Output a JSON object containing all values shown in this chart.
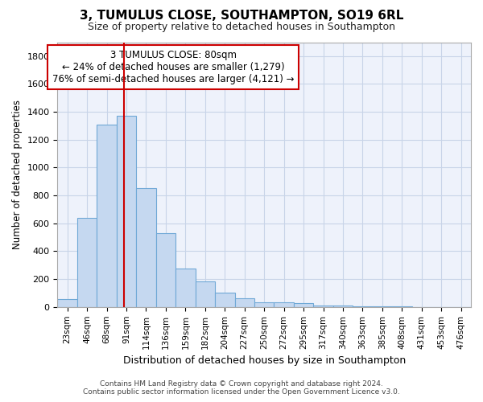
{
  "title": "3, TUMULUS CLOSE, SOUTHAMPTON, SO19 6RL",
  "subtitle": "Size of property relative to detached houses in Southampton",
  "xlabel": "Distribution of detached houses by size in Southampton",
  "ylabel": "Number of detached properties",
  "bar_values": [
    55,
    640,
    1310,
    1370,
    850,
    530,
    275,
    185,
    105,
    65,
    35,
    35,
    25,
    12,
    12,
    5,
    2,
    2,
    0,
    0,
    0
  ],
  "bar_labels": [
    "23sqm",
    "46sqm",
    "68sqm",
    "91sqm",
    "114sqm",
    "136sqm",
    "159sqm",
    "182sqm",
    "204sqm",
    "227sqm",
    "250sqm",
    "272sqm",
    "295sqm",
    "317sqm",
    "340sqm",
    "363sqm",
    "385sqm",
    "408sqm",
    "431sqm",
    "453sqm",
    "476sqm"
  ],
  "bar_color": "#c5d8f0",
  "bar_edge_color": "#6fa8d6",
  "ylim": [
    0,
    1900
  ],
  "yticks": [
    0,
    200,
    400,
    600,
    800,
    1000,
    1200,
    1400,
    1600,
    1800
  ],
  "vline_x": 2.88,
  "vline_color": "#cc0000",
  "annotation_text": "3 TUMULUS CLOSE: 80sqm\n← 24% of detached houses are smaller (1,279)\n76% of semi-detached houses are larger (4,121) →",
  "annotation_box_color": "#cc0000",
  "footer_line1": "Contains HM Land Registry data © Crown copyright and database right 2024.",
  "footer_line2": "Contains public sector information licensed under the Open Government Licence v3.0.",
  "grid_color": "#c8d4e8",
  "background_color": "#eef2fb"
}
